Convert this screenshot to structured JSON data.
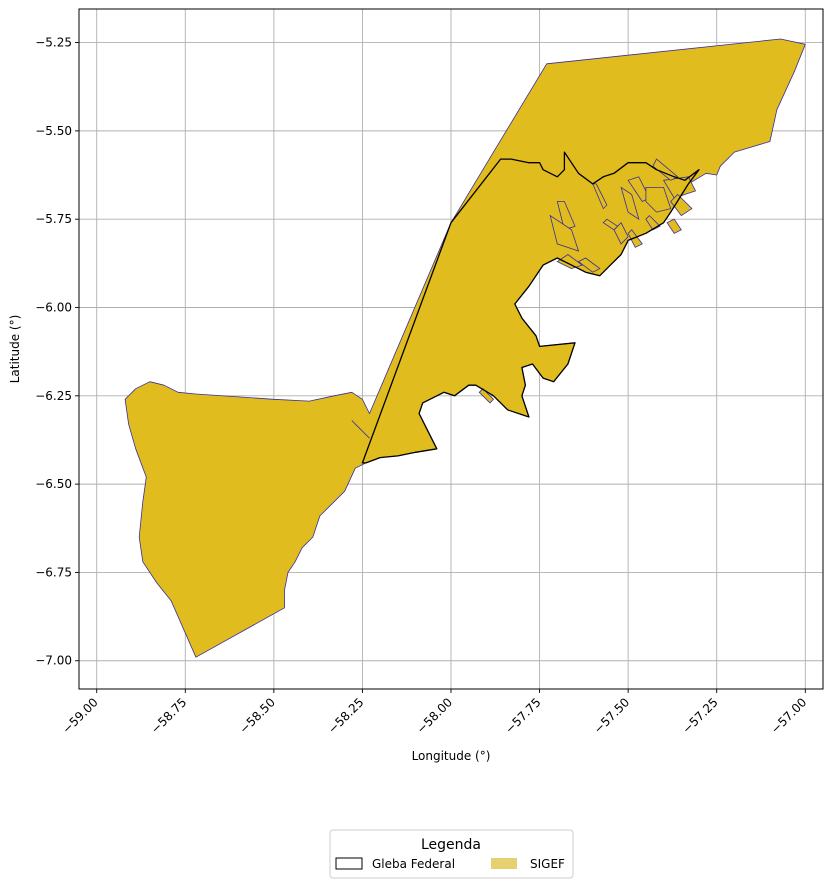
{
  "map": {
    "xlabel": "Longitude (°)",
    "ylabel": "Latitude (°)",
    "xlim": [
      -59.05,
      -56.95
    ],
    "ylim": [
      -7.08,
      -5.155
    ],
    "x_ticks": [
      -59.0,
      -58.75,
      -58.5,
      -58.25,
      -58.0,
      -57.75,
      -57.5,
      -57.25,
      -57.0
    ],
    "x_tick_labels": [
      "−59.00",
      "−58.75",
      "−58.50",
      "−58.25",
      "−58.00",
      "−57.75",
      "−57.50",
      "−57.25",
      "−57.00"
    ],
    "y_ticks": [
      -5.25,
      -5.5,
      -5.75,
      -6.0,
      -6.25,
      -6.5,
      -6.75,
      -7.0
    ],
    "y_tick_labels": [
      "−5.25",
      "−5.50",
      "−5.75",
      "−6.00",
      "−6.25",
      "−6.50",
      "−6.75",
      "−7.00"
    ],
    "grid": true,
    "colors": {
      "sigef_fill": "#e0bc1f",
      "sigef_edge": "#3a2e9c",
      "gleba_edge": "#000000",
      "grid": "#b0b0b0",
      "legend_sigef_patch": "#e6d070"
    }
  },
  "layers": {
    "sigef_outline": [
      [
        -58.72,
        -6.99
      ],
      [
        -58.79,
        -6.83
      ],
      [
        -58.83,
        -6.78
      ],
      [
        -58.87,
        -6.72
      ],
      [
        -58.88,
        -6.65
      ],
      [
        -58.87,
        -6.55
      ],
      [
        -58.86,
        -6.48
      ],
      [
        -58.89,
        -6.4
      ],
      [
        -58.91,
        -6.33
      ],
      [
        -58.92,
        -6.26
      ],
      [
        -58.89,
        -6.23
      ],
      [
        -58.85,
        -6.21
      ],
      [
        -58.81,
        -6.22
      ],
      [
        -58.77,
        -6.24
      ],
      [
        -58.72,
        -6.245
      ],
      [
        -58.5,
        -6.26
      ],
      [
        -58.4,
        -6.265
      ],
      [
        -58.33,
        -6.25
      ],
      [
        -58.28,
        -6.24
      ],
      [
        -58.25,
        -6.26
      ],
      [
        -58.23,
        -6.3
      ],
      [
        -58.0,
        -5.76
      ],
      [
        -57.88,
        -5.56
      ],
      [
        -57.73,
        -5.31
      ],
      [
        -57.07,
        -5.24
      ],
      [
        -57.0,
        -5.255
      ],
      [
        -57.03,
        -5.33
      ],
      [
        -57.08,
        -5.44
      ],
      [
        -57.1,
        -5.53
      ],
      [
        -57.2,
        -5.56
      ],
      [
        -57.24,
        -5.6
      ],
      [
        -57.25,
        -5.625
      ],
      [
        -57.28,
        -5.62
      ],
      [
        -57.33,
        -5.65
      ],
      [
        -57.38,
        -5.73
      ],
      [
        -57.4,
        -5.76
      ],
      [
        -57.45,
        -5.79
      ],
      [
        -57.5,
        -5.81
      ],
      [
        -57.52,
        -5.85
      ],
      [
        -57.55,
        -5.88
      ],
      [
        -57.58,
        -5.91
      ],
      [
        -57.62,
        -5.9
      ],
      [
        -57.66,
        -5.88
      ],
      [
        -57.7,
        -5.86
      ],
      [
        -57.74,
        -5.88
      ],
      [
        -57.78,
        -5.94
      ],
      [
        -57.82,
        -5.99
      ],
      [
        -57.8,
        -6.03
      ],
      [
        -57.76,
        -6.08
      ],
      [
        -57.75,
        -6.11
      ],
      [
        -57.65,
        -6.1
      ],
      [
        -57.67,
        -6.16
      ],
      [
        -57.71,
        -6.21
      ],
      [
        -57.74,
        -6.2
      ],
      [
        -57.77,
        -6.16
      ],
      [
        -57.8,
        -6.17
      ],
      [
        -57.79,
        -6.22
      ],
      [
        -57.8,
        -6.25
      ],
      [
        -57.78,
        -6.31
      ],
      [
        -57.84,
        -6.29
      ],
      [
        -57.88,
        -6.25
      ],
      [
        -57.93,
        -6.22
      ],
      [
        -57.95,
        -6.22
      ],
      [
        -57.99,
        -6.25
      ],
      [
        -58.02,
        -6.24
      ],
      [
        -58.08,
        -6.27
      ],
      [
        -58.09,
        -6.3
      ],
      [
        -58.06,
        -6.36
      ],
      [
        -58.04,
        -6.4
      ],
      [
        -58.1,
        -6.41
      ],
      [
        -58.15,
        -6.42
      ],
      [
        -58.2,
        -6.425
      ],
      [
        -58.24,
        -6.44
      ],
      [
        -58.27,
        -6.455
      ],
      [
        -58.3,
        -6.52
      ],
      [
        -58.34,
        -6.56
      ],
      [
        -58.37,
        -6.59
      ],
      [
        -58.39,
        -6.65
      ],
      [
        -58.42,
        -6.68
      ],
      [
        -58.44,
        -6.72
      ],
      [
        -58.46,
        -6.75
      ],
      [
        -58.47,
        -6.8
      ],
      [
        -58.47,
        -6.85
      ]
    ],
    "gleba_outline": [
      [
        -58.25,
        -6.44
      ],
      [
        -58.0,
        -5.76
      ],
      [
        -57.86,
        -5.58
      ],
      [
        -57.83,
        -5.58
      ],
      [
        -57.78,
        -5.59
      ],
      [
        -57.75,
        -5.59
      ],
      [
        -57.74,
        -5.61
      ],
      [
        -57.7,
        -5.63
      ],
      [
        -57.68,
        -5.61
      ],
      [
        -57.68,
        -5.56
      ],
      [
        -57.64,
        -5.62
      ],
      [
        -57.6,
        -5.65
      ],
      [
        -57.57,
        -5.63
      ],
      [
        -57.54,
        -5.62
      ],
      [
        -57.5,
        -5.59
      ],
      [
        -57.45,
        -5.59
      ],
      [
        -57.42,
        -5.61
      ],
      [
        -57.37,
        -5.63
      ],
      [
        -57.34,
        -5.64
      ],
      [
        -57.3,
        -5.61
      ],
      [
        -57.33,
        -5.65
      ],
      [
        -57.38,
        -5.73
      ],
      [
        -57.4,
        -5.76
      ],
      [
        -57.45,
        -5.79
      ],
      [
        -57.5,
        -5.81
      ],
      [
        -57.52,
        -5.85
      ],
      [
        -57.55,
        -5.88
      ],
      [
        -57.58,
        -5.91
      ],
      [
        -57.62,
        -5.9
      ],
      [
        -57.66,
        -5.88
      ],
      [
        -57.7,
        -5.86
      ],
      [
        -57.74,
        -5.88
      ],
      [
        -57.78,
        -5.94
      ],
      [
        -57.82,
        -5.99
      ],
      [
        -57.8,
        -6.03
      ],
      [
        -57.76,
        -6.08
      ],
      [
        -57.75,
        -6.11
      ],
      [
        -57.65,
        -6.1
      ],
      [
        -57.67,
        -6.16
      ],
      [
        -57.71,
        -6.21
      ],
      [
        -57.74,
        -6.2
      ],
      [
        -57.77,
        -6.16
      ],
      [
        -57.8,
        -6.17
      ],
      [
        -57.79,
        -6.22
      ],
      [
        -57.8,
        -6.25
      ],
      [
        -57.78,
        -6.31
      ],
      [
        -57.84,
        -6.29
      ],
      [
        -57.88,
        -6.25
      ],
      [
        -57.93,
        -6.22
      ],
      [
        -57.95,
        -6.22
      ],
      [
        -57.99,
        -6.25
      ],
      [
        -58.02,
        -6.24
      ],
      [
        -58.08,
        -6.27
      ],
      [
        -58.09,
        -6.3
      ],
      [
        -58.06,
        -6.36
      ],
      [
        -58.04,
        -6.4
      ],
      [
        -58.1,
        -6.41
      ],
      [
        -58.15,
        -6.42
      ],
      [
        -58.2,
        -6.425
      ],
      [
        -58.24,
        -6.44
      ]
    ],
    "sigef_parcels": [
      [
        [
          -57.5,
          -5.64
        ],
        [
          -57.46,
          -5.7
        ],
        [
          -57.44,
          -5.69
        ],
        [
          -57.47,
          -5.63
        ]
      ],
      [
        [
          -57.52,
          -5.66
        ],
        [
          -57.5,
          -5.73
        ],
        [
          -57.47,
          -5.75
        ],
        [
          -57.49,
          -5.68
        ]
      ],
      [
        [
          -57.45,
          -5.66
        ],
        [
          -57.4,
          -5.66
        ],
        [
          -57.38,
          -5.72
        ],
        [
          -57.42,
          -5.73
        ],
        [
          -57.45,
          -5.7
        ]
      ],
      [
        [
          -57.4,
          -5.64
        ],
        [
          -57.33,
          -5.63
        ],
        [
          -57.31,
          -5.67
        ],
        [
          -57.37,
          -5.69
        ]
      ],
      [
        [
          -57.42,
          -5.58
        ],
        [
          -57.36,
          -5.63
        ],
        [
          -57.38,
          -5.64
        ],
        [
          -57.43,
          -5.6
        ]
      ],
      [
        [
          -57.36,
          -5.68
        ],
        [
          -57.32,
          -5.72
        ],
        [
          -57.35,
          -5.74
        ],
        [
          -57.38,
          -5.7
        ]
      ],
      [
        [
          -57.6,
          -5.65
        ],
        [
          -57.57,
          -5.72
        ],
        [
          -57.56,
          -5.71
        ],
        [
          -57.59,
          -5.65
        ]
      ],
      [
        [
          -57.7,
          -5.7
        ],
        [
          -57.68,
          -5.78
        ],
        [
          -57.65,
          -5.77
        ],
        [
          -57.68,
          -5.7
        ]
      ],
      [
        [
          -57.72,
          -5.74
        ],
        [
          -57.66,
          -5.78
        ],
        [
          -57.64,
          -5.84
        ],
        [
          -57.7,
          -5.82
        ]
      ],
      [
        [
          -57.7,
          -5.87
        ],
        [
          -57.66,
          -5.89
        ],
        [
          -57.63,
          -5.88
        ],
        [
          -57.67,
          -5.85
        ]
      ],
      [
        [
          -57.62,
          -5.86
        ],
        [
          -57.58,
          -5.89
        ],
        [
          -57.6,
          -5.9
        ],
        [
          -57.64,
          -5.87
        ]
      ],
      [
        [
          -57.52,
          -5.76
        ],
        [
          -57.5,
          -5.8
        ],
        [
          -57.52,
          -5.82
        ],
        [
          -57.54,
          -5.78
        ]
      ],
      [
        [
          -57.49,
          -5.78
        ],
        [
          -57.46,
          -5.82
        ],
        [
          -57.48,
          -5.83
        ],
        [
          -57.5,
          -5.79
        ]
      ],
      [
        [
          -57.56,
          -5.75
        ],
        [
          -57.53,
          -5.77
        ],
        [
          -57.54,
          -5.78
        ],
        [
          -57.57,
          -5.76
        ]
      ],
      [
        [
          -57.44,
          -5.74
        ],
        [
          -57.41,
          -5.77
        ],
        [
          -57.43,
          -5.78
        ],
        [
          -57.45,
          -5.75
        ]
      ],
      [
        [
          -57.37,
          -5.75
        ],
        [
          -57.35,
          -5.78
        ],
        [
          -57.37,
          -5.79
        ],
        [
          -57.39,
          -5.76
        ]
      ],
      [
        [
          -58.28,
          -6.32
        ],
        [
          -58.24,
          -6.36
        ],
        [
          -58.23,
          -6.37
        ],
        [
          -58.27,
          -6.33
        ]
      ],
      [
        [
          -57.92,
          -6.24
        ],
        [
          -57.89,
          -6.27
        ],
        [
          -57.88,
          -6.26
        ],
        [
          -57.91,
          -6.23
        ]
      ]
    ]
  },
  "legend": {
    "title": "Legenda",
    "items": [
      {
        "label": "Gleba Federal"
      },
      {
        "label": "SIGEF"
      }
    ]
  }
}
